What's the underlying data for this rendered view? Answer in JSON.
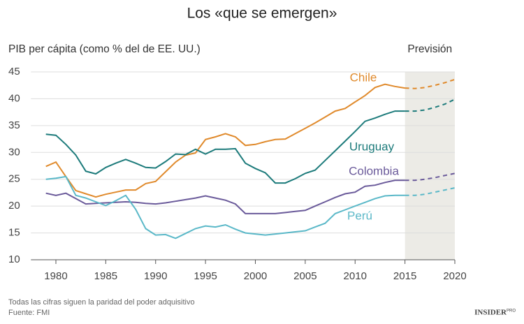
{
  "chart_data": {
    "type": "line",
    "title": "Los «que se emergen»",
    "y_label": "PIB per cápita (como % del de EE. UU.)",
    "notes": [
      "Todas las cifras siguen la paridad del poder adquisitivo",
      "Fuente: FMI"
    ],
    "branding": {
      "name": "INSIDER",
      "tag": "PRO"
    },
    "shaded_region": {
      "label": "Previsión",
      "xlim": [
        2015,
        2020
      ],
      "color": "#ecebe6"
    },
    "x": [
      1979,
      1980,
      1981,
      1982,
      1983,
      1984,
      1985,
      1986,
      1987,
      1988,
      1989,
      1990,
      1991,
      1992,
      1993,
      1994,
      1995,
      1996,
      1997,
      1998,
      1999,
      2000,
      2001,
      2002,
      2003,
      2004,
      2005,
      2006,
      2007,
      2008,
      2009,
      2010,
      2011,
      2012,
      2013,
      2014,
      2015,
      2016,
      2017,
      2018,
      2019,
      2020
    ],
    "series": [
      {
        "name": "Chile",
        "color": "#e08a2c",
        "values": [
          27.4,
          28.2,
          25.5,
          22.9,
          22.3,
          21.7,
          22.2,
          22.6,
          23.0,
          23.0,
          24.2,
          24.6,
          26.4,
          28.2,
          29.5,
          29.9,
          32.4,
          32.9,
          33.5,
          32.9,
          31.3,
          31.5,
          32.0,
          32.4,
          32.5,
          33.5,
          34.5,
          35.5,
          36.6,
          37.7,
          38.2,
          39.4,
          40.6,
          42.1,
          42.7,
          42.3,
          42.0,
          41.9,
          42.1,
          42.5,
          43.0,
          43.6
        ]
      },
      {
        "name": "Uruguay",
        "color": "#1d7b7b",
        "values": [
          33.4,
          33.2,
          31.5,
          29.5,
          26.5,
          26.0,
          27.2,
          28.0,
          28.7,
          28.0,
          27.2,
          27.1,
          28.3,
          29.7,
          29.6,
          30.6,
          29.7,
          30.6,
          30.6,
          30.7,
          28.0,
          27.0,
          26.2,
          24.3,
          24.3,
          25.1,
          26.1,
          26.7,
          28.5,
          30.3,
          32.1,
          33.9,
          35.8,
          36.4,
          37.1,
          37.7,
          37.7,
          37.7,
          37.9,
          38.4,
          39.0,
          39.9
        ]
      },
      {
        "name": "Colombia",
        "color": "#6a5a9a",
        "values": [
          22.4,
          22.0,
          22.4,
          21.4,
          20.4,
          20.5,
          20.6,
          20.7,
          20.8,
          20.7,
          20.5,
          20.4,
          20.6,
          20.9,
          21.2,
          21.5,
          21.9,
          21.5,
          21.1,
          20.4,
          18.6,
          18.6,
          18.6,
          18.6,
          18.8,
          19.0,
          19.2,
          20.0,
          20.8,
          21.6,
          22.3,
          22.6,
          23.7,
          23.9,
          24.4,
          24.8,
          24.8,
          24.8,
          25.0,
          25.3,
          25.7,
          26.1
        ]
      },
      {
        "name": "Perú",
        "color": "#5ab8c8",
        "values": [
          25.0,
          25.2,
          25.5,
          22.0,
          21.5,
          20.8,
          20.1,
          21.0,
          22.0,
          19.4,
          15.8,
          14.6,
          14.7,
          14.0,
          14.9,
          15.8,
          16.3,
          16.1,
          16.5,
          15.7,
          15.0,
          14.8,
          14.6,
          14.8,
          15.0,
          15.2,
          15.4,
          16.1,
          16.8,
          18.6,
          19.3,
          20.0,
          20.7,
          21.4,
          21.9,
          22.0,
          22.0,
          22.0,
          22.2,
          22.6,
          23.0,
          23.4
        ]
      }
    ],
    "xlim": [
      1977.5,
      2020
    ],
    "ylim": [
      10,
      45
    ],
    "xticks": [
      1980,
      1985,
      1990,
      1995,
      2000,
      2005,
      2010,
      2015,
      2020
    ],
    "yticks": [
      10,
      15,
      20,
      25,
      30,
      35,
      40,
      45
    ],
    "grid": true
  }
}
